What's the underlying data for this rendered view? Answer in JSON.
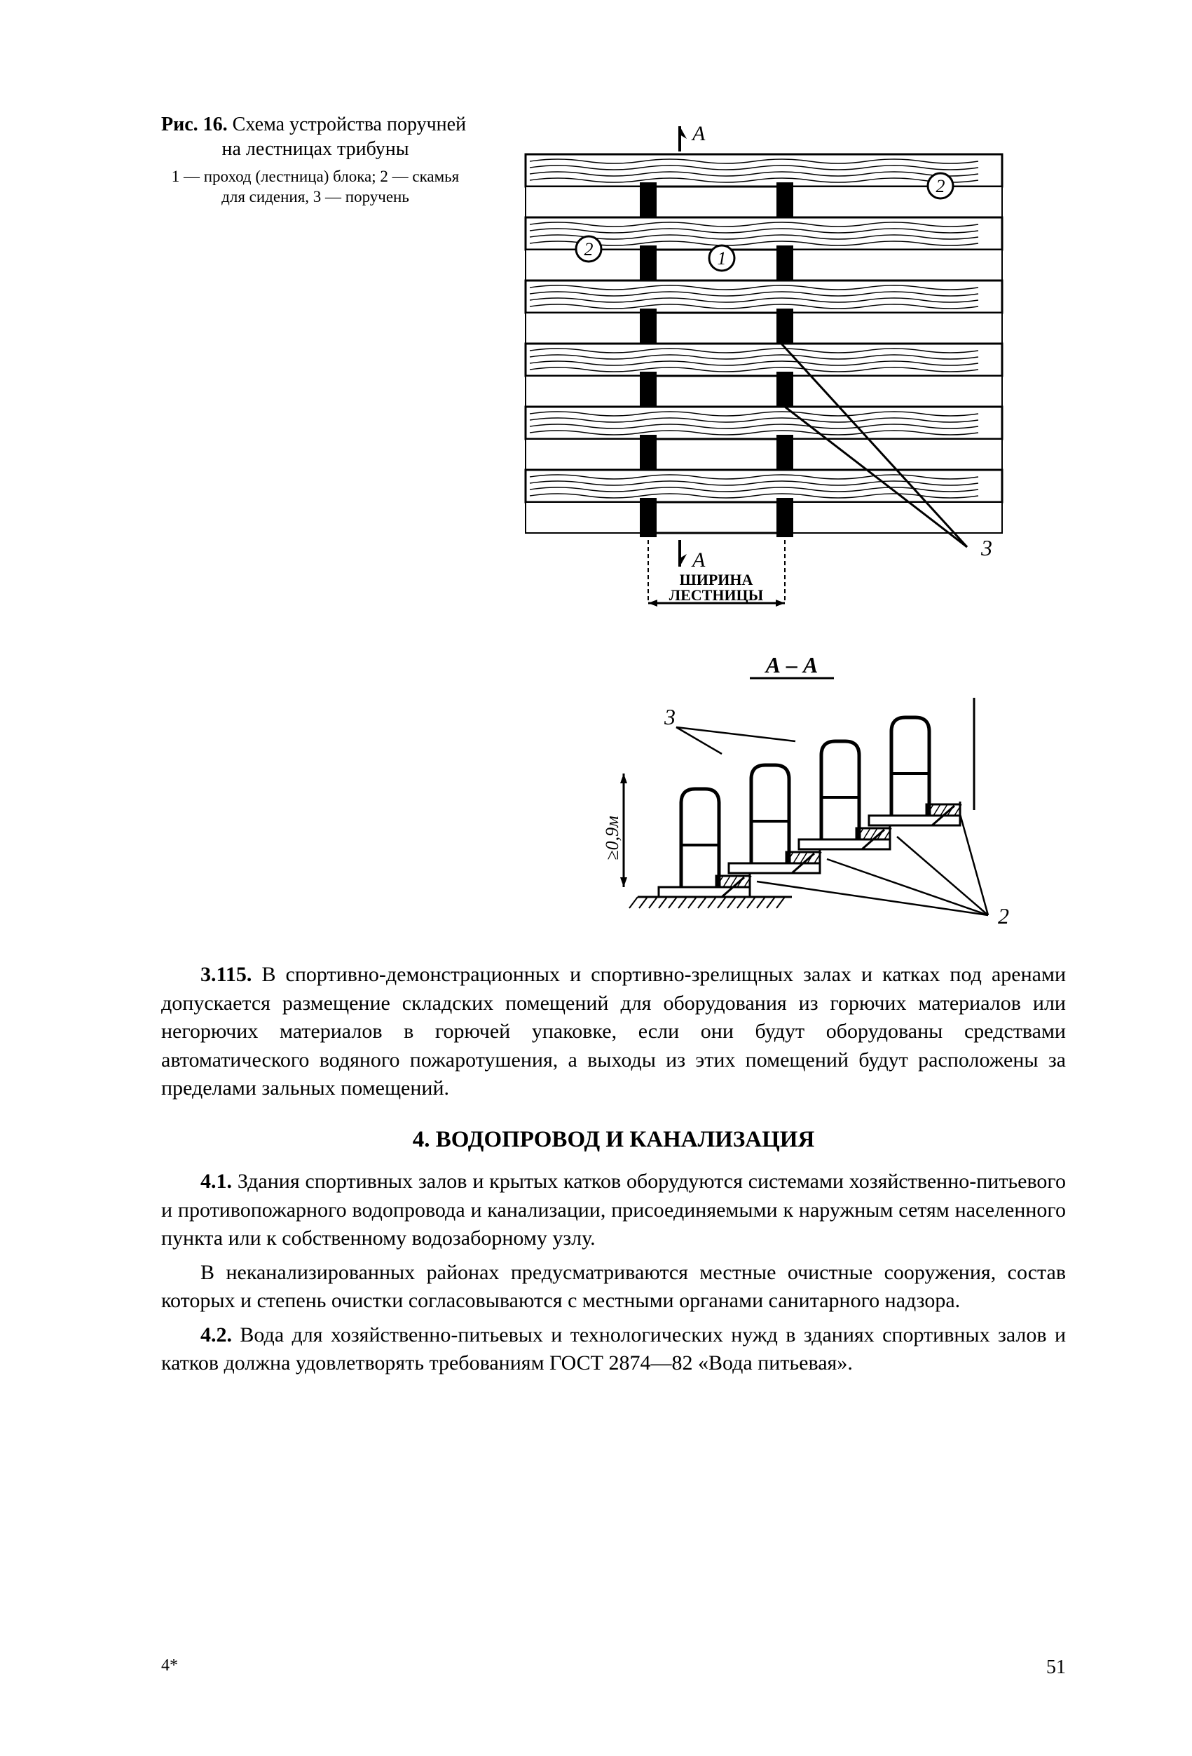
{
  "figure": {
    "label": "Рис. 16.",
    "title_l1": " Схема устройства поручней",
    "title_l2": "на лестницах трибуны",
    "legend": "1 — проход (лестница) блока; 2 — скамья для сидения, 3 — поручень",
    "labels": {
      "A": "А",
      "section": "А – А",
      "stair_width_l1": "ШИРИНА",
      "stair_width_l2": "ЛЕСТНИЦЫ",
      "height_dim": "≥0,9м",
      "c1": "1",
      "c2": "2",
      "c3": "3"
    },
    "plan_rows": 6,
    "colors": {
      "stroke": "#000000",
      "fill": "#ffffff"
    }
  },
  "paragraphs": {
    "p3_115": "В спортивно-демонстрационных и спортивно-зрелищных залах и катках под аренами допускается размещение складских помещений для оборудования из горючих материалов или негорючих материалов в горючей упаковке, если они будут оборудованы средствами автоматического водяного пожаротушения, а выходы из этих помещений будут расположены за пределами зальных помещений.",
    "n3_115": "3.115.",
    "section4_title": "4. ВОДОПРОВОД И КАНАЛИЗАЦИЯ",
    "n4_1": "4.1.",
    "p4_1a": "Здания спортивных залов и крытых катков оборудуются системами хозяйственно-питьевого и противопожарного водопровода и канализации, присоединяемыми к наружным сетям населенного пункта или к собственному водозаборному узлу.",
    "p4_1b": "В неканализированных районах предусматриваются местные очистные сооружения, состав которых и степень очистки согласовываются с местными органами санитарного надзора.",
    "n4_2": "4.2.",
    "p4_2": "Вода для хозяйственно-питьевых и технологических нужд в зданиях спортивных залов и катков должна удовлетворять требованиям ГОСТ 2874—82 «Вода питьевая»."
  },
  "footer": {
    "signature": "4*",
    "page": "51"
  }
}
